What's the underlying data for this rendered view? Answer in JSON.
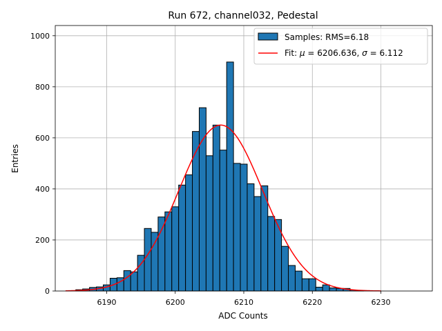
{
  "chart_data": {
    "type": "bar",
    "title": "Run 672, channel032, Pedestal",
    "xlabel": "ADC Counts",
    "ylabel": "Entries",
    "xlim": [
      6182.5,
      6237.5
    ],
    "ylim": [
      0,
      1040
    ],
    "grid": true,
    "xticks": [
      6190,
      6200,
      6210,
      6220,
      6230
    ],
    "yticks": [
      0,
      200,
      400,
      600,
      800,
      1000
    ],
    "bin_width": 1,
    "bins": [
      {
        "x": 6186,
        "y": 5
      },
      {
        "x": 6187,
        "y": 8
      },
      {
        "x": 6188,
        "y": 14
      },
      {
        "x": 6189,
        "y": 16
      },
      {
        "x": 6190,
        "y": 24
      },
      {
        "x": 6191,
        "y": 50
      },
      {
        "x": 6192,
        "y": 52
      },
      {
        "x": 6193,
        "y": 80
      },
      {
        "x": 6194,
        "y": 75
      },
      {
        "x": 6195,
        "y": 140
      },
      {
        "x": 6196,
        "y": 245
      },
      {
        "x": 6197,
        "y": 230
      },
      {
        "x": 6198,
        "y": 290
      },
      {
        "x": 6199,
        "y": 310
      },
      {
        "x": 6200,
        "y": 330
      },
      {
        "x": 6201,
        "y": 415
      },
      {
        "x": 6202,
        "y": 455
      },
      {
        "x": 6203,
        "y": 625
      },
      {
        "x": 6204,
        "y": 718
      },
      {
        "x": 6205,
        "y": 530
      },
      {
        "x": 6206,
        "y": 650
      },
      {
        "x": 6207,
        "y": 552
      },
      {
        "x": 6208,
        "y": 897
      },
      {
        "x": 6209,
        "y": 500
      },
      {
        "x": 6210,
        "y": 497
      },
      {
        "x": 6211,
        "y": 420
      },
      {
        "x": 6212,
        "y": 370
      },
      {
        "x": 6213,
        "y": 412
      },
      {
        "x": 6214,
        "y": 292
      },
      {
        "x": 6215,
        "y": 280
      },
      {
        "x": 6216,
        "y": 175
      },
      {
        "x": 6217,
        "y": 100
      },
      {
        "x": 6218,
        "y": 78
      },
      {
        "x": 6219,
        "y": 48
      },
      {
        "x": 6220,
        "y": 48
      },
      {
        "x": 6221,
        "y": 15
      },
      {
        "x": 6222,
        "y": 24
      },
      {
        "x": 6223,
        "y": 12
      },
      {
        "x": 6224,
        "y": 10
      },
      {
        "x": 6225,
        "y": 10
      },
      {
        "x": 6226,
        "y": 4
      },
      {
        "x": 6227,
        "y": 2
      }
    ],
    "series": [
      {
        "name": "Samples: RMS=6.18",
        "kind": "histogram",
        "color": "#1f77b4",
        "edgecolor": "#000000"
      },
      {
        "name": "Fit: μ = 6206.636, σ = 6.112",
        "kind": "gaussian-fit",
        "color": "#ff0000",
        "amplitude": 650,
        "mu": 6206.636,
        "sigma": 6.112,
        "x_range": [
          6184,
          6230
        ]
      }
    ],
    "legend": {
      "position": "top-right",
      "entries": [
        {
          "label": "Samples: RMS=6.18",
          "marker": "patch",
          "color": "#1f77b4"
        },
        {
          "label": "Fit: ",
          "mu_symbol": "μ",
          "mu_text": " = 6206.636, ",
          "sigma_symbol": "σ",
          "sigma_text": " = 6.112",
          "marker": "line",
          "color": "#ff0000"
        }
      ]
    }
  }
}
